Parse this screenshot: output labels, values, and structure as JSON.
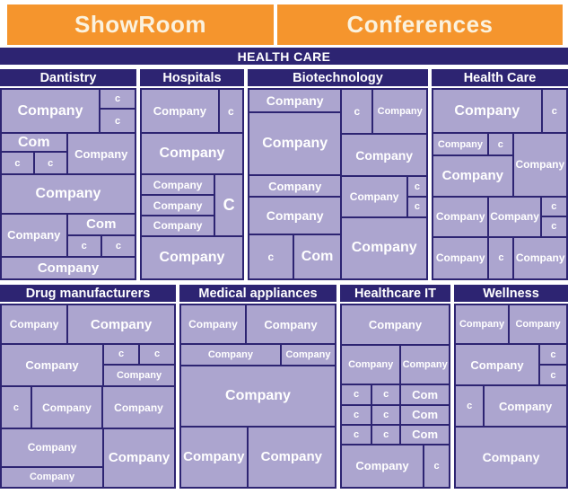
{
  "header": {
    "tabs": [
      {
        "label": "ShowRoom"
      },
      {
        "label": "Conferences"
      }
    ]
  },
  "banner": {
    "label": "HEALTH CARE"
  },
  "colors": {
    "accent_orange": "#F5952D",
    "navy": "#2D2472",
    "cell_lavender": "#ACA5CF",
    "text_white": "#FFFFFF"
  },
  "tm": {
    "dantistry": {
      "title": "Dantistry",
      "cells": [
        "Company",
        "c",
        "c",
        "Com",
        "c",
        "c",
        "Company",
        "Company",
        "Company",
        "Com",
        "c",
        "c",
        "Company"
      ]
    },
    "hospitals": {
      "title": "Hospitals",
      "cells": [
        "Company",
        "c",
        "Company",
        "Company",
        "Company",
        "Company",
        "C",
        "Company"
      ]
    },
    "biotechnology": {
      "title": "Biotechnology",
      "cells": [
        "Company",
        "Company",
        "Company",
        "Company",
        "c",
        "Com",
        "c",
        "Company",
        "Company",
        "Company",
        "c",
        "c",
        "Company"
      ]
    },
    "healthcare": {
      "title": "Health Care",
      "cells": [
        "Company",
        "c",
        "Company",
        "c",
        "Company",
        "Company",
        "Company",
        "Company",
        "c",
        "c",
        "Company",
        "c",
        "Company"
      ]
    },
    "drug": {
      "title": "Drug manufacturers",
      "cells": [
        "Company",
        "Company",
        "Company",
        "c",
        "c",
        "Company",
        "c",
        "Company",
        "Company",
        "Company",
        "Company",
        "Company"
      ]
    },
    "medical": {
      "title": "Medical appliances",
      "cells": [
        "Company",
        "Company",
        "Company",
        "Company",
        "Company",
        "Company",
        "Company"
      ]
    },
    "hit": {
      "title": "Healthcare IT",
      "cells": [
        "Company",
        "Company",
        "Company",
        "c",
        "c",
        "Com",
        "c",
        "c",
        "Com",
        "c",
        "c",
        "Com",
        "Company",
        "c"
      ]
    },
    "wellness": {
      "title": "Wellness",
      "cells": [
        "Company",
        "Company",
        "Company",
        "c",
        "c",
        "c",
        "Company",
        "Company"
      ]
    }
  }
}
